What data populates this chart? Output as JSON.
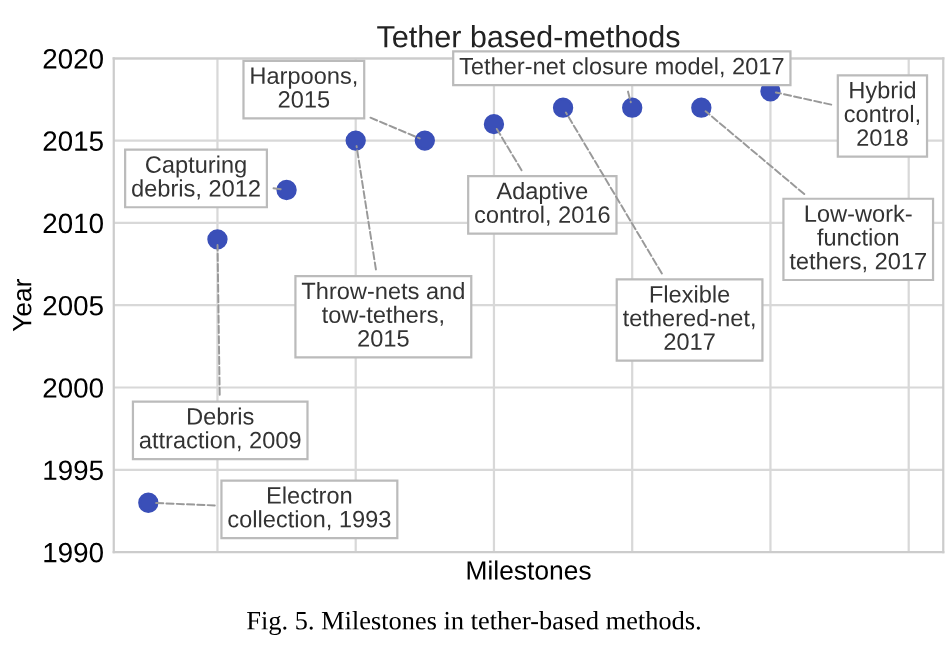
{
  "chart_data": {
    "type": "scatter",
    "title": "Tether based-methods",
    "xlabel": "Milestones",
    "ylabel": "Year",
    "categories": [
      null,
      null,
      null,
      null,
      null,
      null,
      null,
      null,
      null,
      null,
      null,
      null
    ],
    "series": [
      {
        "color": "#3a4fb8",
        "values": [
          1993,
          2009,
          2012,
          2015,
          2015,
          2016,
          2017,
          2017,
          2017,
          2018,
          null,
          null
        ]
      }
    ],
    "ylim": [
      1990,
      2020
    ],
    "yticks": [
      1990,
      1995,
      2000,
      2005,
      2010,
      2015,
      2020
    ],
    "grid": true,
    "marker": "circle",
    "tick_labels": "y",
    "annotations": [
      "Electron\ncollection, 1993",
      "Debris\nattraction, 2009",
      "Capturing\ndebris, 2012",
      "Throw-nets and\ntow-tethers,\n2015",
      "Harpoons,\n2015",
      "Adaptive\ncontrol, 2016",
      "Flexible\ntethered-net,\n2017",
      "Tether-net closure model, 2017",
      "Low-work-\nfunction\ntethers, 2017",
      "Hybrid\ncontrol,\n2018",
      "Fig. 5. Milestones in tether-based methods."
    ]
  }
}
